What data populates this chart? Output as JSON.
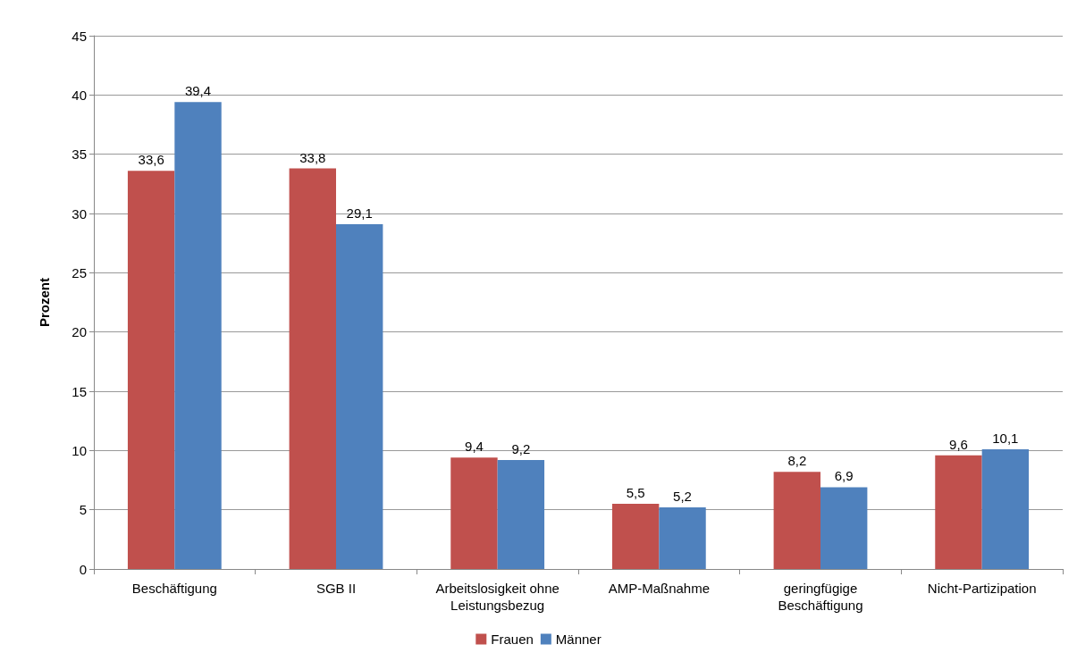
{
  "chart_data": {
    "type": "bar",
    "ylabel": "Prozent",
    "categories": [
      "Beschäftigung",
      "SGB II",
      "Arbeitslosigkeit ohne\nLeistungsbezug",
      "AMP-Maßnahme",
      "geringfügige\nBeschäftigung",
      "Nicht-Partizipation"
    ],
    "series": [
      {
        "name": "Frauen",
        "color": "#c0504d",
        "values": [
          33.6,
          33.8,
          9.4,
          5.5,
          8.2,
          9.6
        ],
        "value_labels": [
          "33,6",
          "33,8",
          "9,4",
          "5,5",
          "8,2",
          "9,6"
        ]
      },
      {
        "name": "Männer",
        "color": "#4f81bd",
        "values": [
          39.4,
          29.1,
          9.2,
          5.2,
          6.9,
          10.1
        ],
        "value_labels": [
          "39,4",
          "29,1",
          "9,2",
          "5,2",
          "6,9",
          "10,1"
        ]
      }
    ],
    "ylim": [
      0,
      45
    ],
    "yticks": [
      0,
      5,
      10,
      15,
      20,
      25,
      30,
      35,
      40,
      45
    ],
    "grid": "y",
    "legend": "bottom"
  }
}
